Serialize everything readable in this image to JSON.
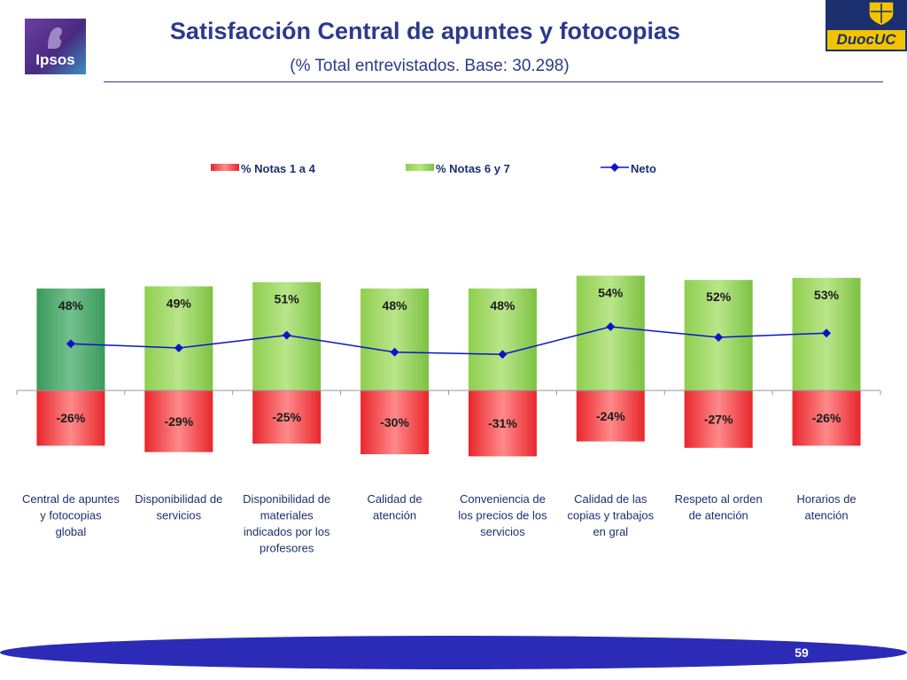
{
  "header": {
    "title": "Satisfacción Central de apuntes y fotocopias",
    "subtitle": "(% Total entrevistados. Base: 30.298)",
    "logo_left_text": "Ipsos",
    "logo_right_text": "DuocUC"
  },
  "footer": {
    "page_number": "59"
  },
  "colors": {
    "negative_bar": "#e8262c",
    "positive_bar": "#7cc242",
    "highlight_bar": "#3a9a5a",
    "line": "#0a14c8",
    "title": "#2b3a8c"
  },
  "chart_data": {
    "type": "bar",
    "categories": [
      "Central de apuntes y fotocopias global",
      "Disponibilidad de servicios",
      "Disponibilidad de materiales indicados por los profesores",
      "Calidad de atención",
      "Conveniencia de los precios de los servicios",
      "Calidad de las copias y trabajos en gral",
      "Respeto al orden de atención",
      "Horarios de atención"
    ],
    "series": [
      {
        "name": "% Notas 1 a 4",
        "values": [
          -26,
          -29,
          -25,
          -30,
          -31,
          -24,
          -27,
          -26
        ],
        "labels": [
          "-26%",
          "-29%",
          "-25%",
          "-30%",
          "-31%",
          "-24%",
          "-27%",
          "-26%"
        ]
      },
      {
        "name": "% Notas 6 y 7",
        "values": [
          48,
          49,
          51,
          48,
          48,
          54,
          52,
          53
        ],
        "labels": [
          "48%",
          "49%",
          "51%",
          "48%",
          "48%",
          "54%",
          "52%",
          "53%"
        ]
      },
      {
        "name": "Neto",
        "values": [
          22,
          20,
          26,
          18,
          17,
          30,
          25,
          27
        ]
      }
    ],
    "highlight_index": 0,
    "ylim": [
      -31,
      55
    ],
    "legend_position": "top",
    "grid": false
  }
}
